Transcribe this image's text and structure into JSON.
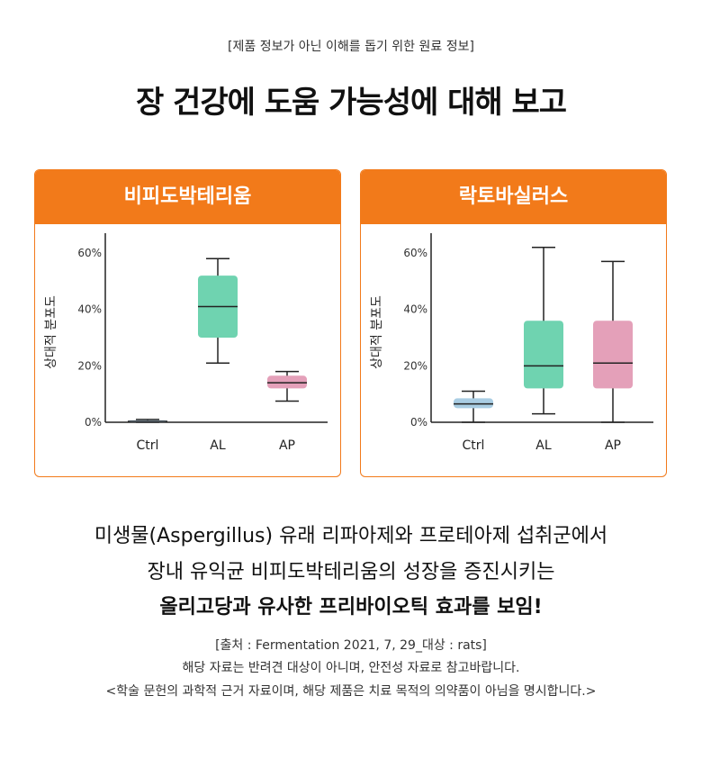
{
  "disclaimer": "[제품 정보가 아닌 이해를 돕기 위한 원료 정보]",
  "headline": "장 건강에 도움 가능성에 대해 보고",
  "chart_data": [
    {
      "type": "box",
      "title": "비피도박테리움",
      "ylabel": "상대적 분포도",
      "yticks": [
        "0%",
        "20%",
        "40%",
        "60%"
      ],
      "ylim": [
        0,
        65
      ],
      "categories": [
        "Ctrl",
        "AL",
        "AP"
      ],
      "colors": [
        "#a9cde3",
        "#6fd3b0",
        "#e4a0b9"
      ],
      "boxes": [
        {
          "whisker_low": 0,
          "q1": 0,
          "median": 0.3,
          "q3": 0.7,
          "whisker_high": 1
        },
        {
          "whisker_low": 21,
          "q1": 30,
          "median": 41,
          "q3": 52,
          "whisker_high": 58
        },
        {
          "whisker_low": 7.5,
          "q1": 12,
          "median": 14,
          "q3": 16.5,
          "whisker_high": 18
        }
      ]
    },
    {
      "type": "box",
      "title": "락토바실러스",
      "ylabel": "상대적 분포도",
      "yticks": [
        "0%",
        "20%",
        "40%",
        "60%"
      ],
      "ylim": [
        0,
        65
      ],
      "categories": [
        "Ctrl",
        "AL",
        "AP"
      ],
      "colors": [
        "#a9cde3",
        "#6fd3b0",
        "#e4a0b9"
      ],
      "boxes": [
        {
          "whisker_low": 0,
          "q1": 5,
          "median": 6.5,
          "q3": 8.5,
          "whisker_high": 11
        },
        {
          "whisker_low": 3,
          "q1": 12,
          "median": 20,
          "q3": 36,
          "whisker_high": 62
        },
        {
          "whisker_low": 0,
          "q1": 12,
          "median": 21,
          "q3": 36,
          "whisker_high": 57
        }
      ]
    }
  ],
  "body": {
    "line1": "미생물(Aspergillus) 유래 리파아제와  프로테아제 섭취군에서",
    "line2": "장내 유익균 비피도박테리움의 성장을 증진시키는",
    "line3": "올리고당과 유사한 프리바이오틱 효과를 보임!"
  },
  "source": "[출처 : Fermentation 2021, 7, 29_대상 : rats]",
  "note1": "해당 자료는 반려견 대상이 아니며, 안전성 자료로 참고바랍니다.",
  "note2": "<학술 문헌의 과학적 근거 자료이며, 해당 제품은 치료 목적의 의약품이 아님을 명시합니다.>"
}
